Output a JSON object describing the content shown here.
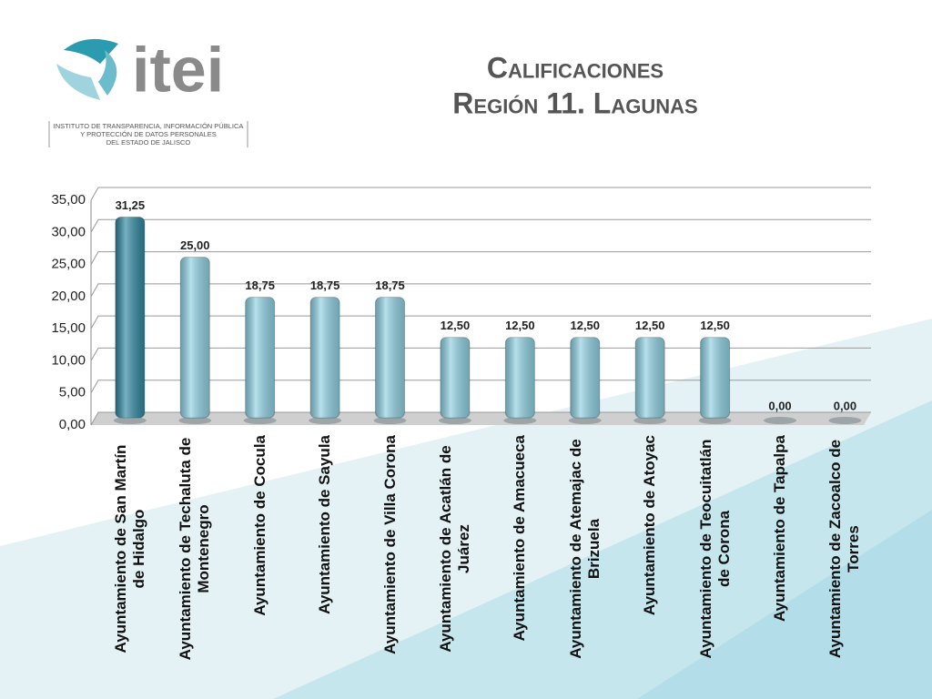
{
  "logo": {
    "name": "itei",
    "lines": [
      "INSTITUTO DE TRANSPARENCIA, INFORMACIÓN PÚBLICA",
      "Y PROTECCIÓN DE DATOS PERSONALES",
      "DEL ESTADO DE JALISCO"
    ]
  },
  "chart_data": {
    "type": "bar",
    "title": [
      "Calificaciones",
      "Región 11. Lagunas"
    ],
    "categories": [
      "Ayuntamiento de San Martín de Hidalgo",
      "Ayuntamiento de Techaluta de Montenegro",
      "Ayuntamiento de Cocula",
      "Ayuntamiento de Sayula",
      "Ayuntamiento de Villa Corona",
      "Ayuntamiento de Acatlán de Juárez",
      "Ayuntamiento de Amacueca",
      "Ayuntamiento de Atemajac de Brizuela",
      "Ayuntamiento de Atoyac",
      "Ayuntamiento de Teocuitatlán de Corona",
      "Ayuntamiento de Tapalpa",
      "Ayuntamiento de Zacoalco de Torres"
    ],
    "values": [
      31.25,
      25,
      18.75,
      18.75,
      18.75,
      12.5,
      12.5,
      12.5,
      12.5,
      12.5,
      0,
      0
    ],
    "value_labels": [
      "31,25",
      "25,00",
      "18,75",
      "18,75",
      "18,75",
      "12,50",
      "12,50",
      "12,50",
      "12,50",
      "12,50",
      "0,00",
      "0,00"
    ],
    "colors": [
      "#2f87a1",
      "#8fd0e2",
      "#8fd0e2",
      "#8fd0e2",
      "#8fd0e2",
      "#8fd0e2",
      "#8fd0e2",
      "#8fd0e2",
      "#8fd0e2",
      "#8fd0e2",
      "#8fd0e2",
      "#8fd0e2"
    ],
    "ylim": [
      0,
      35
    ],
    "yticks": [
      {
        "value": 0,
        "label": "0,00"
      },
      {
        "value": 5,
        "label": "5,00"
      },
      {
        "value": 10,
        "label": "10,00"
      },
      {
        "value": 15,
        "label": "15,00"
      },
      {
        "value": 20,
        "label": "20,00"
      },
      {
        "value": 25,
        "label": "25,00"
      },
      {
        "value": 30,
        "label": "30,00"
      },
      {
        "value": 35,
        "label": "35,00"
      }
    ],
    "grid": true
  }
}
